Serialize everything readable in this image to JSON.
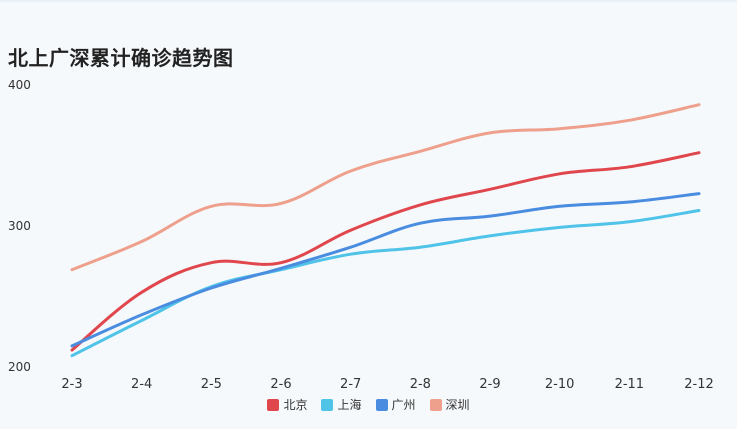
{
  "chart_data": {
    "type": "line",
    "title": "北上广深累计确诊趋势图",
    "xlabel": "",
    "ylabel": "",
    "categories": [
      "2-3",
      "2-4",
      "2-5",
      "2-6",
      "2-7",
      "2-8",
      "2-9",
      "2-10",
      "2-11",
      "2-12"
    ],
    "ylim": [
      200,
      400
    ],
    "yticks": [
      "200",
      "300",
      "400"
    ],
    "grid": false,
    "legend_position": "bottom",
    "series": [
      {
        "name": "北京",
        "color": "#e0474d",
        "values": [
          212,
          253,
          274,
          274,
          297,
          315,
          326,
          337,
          342,
          352
        ]
      },
      {
        "name": "上海",
        "color": "#4fc3e8",
        "values": [
          208,
          233,
          257,
          269,
          280,
          285,
          293,
          299,
          303,
          311
        ]
      },
      {
        "name": "广州",
        "color": "#4a8de0",
        "values": [
          215,
          237,
          256,
          270,
          285,
          302,
          307,
          314,
          317,
          323
        ]
      },
      {
        "name": "深圳",
        "color": "#eea08c",
        "values": [
          269,
          289,
          314,
          316,
          339,
          353,
          366,
          369,
          375,
          386
        ]
      }
    ]
  }
}
